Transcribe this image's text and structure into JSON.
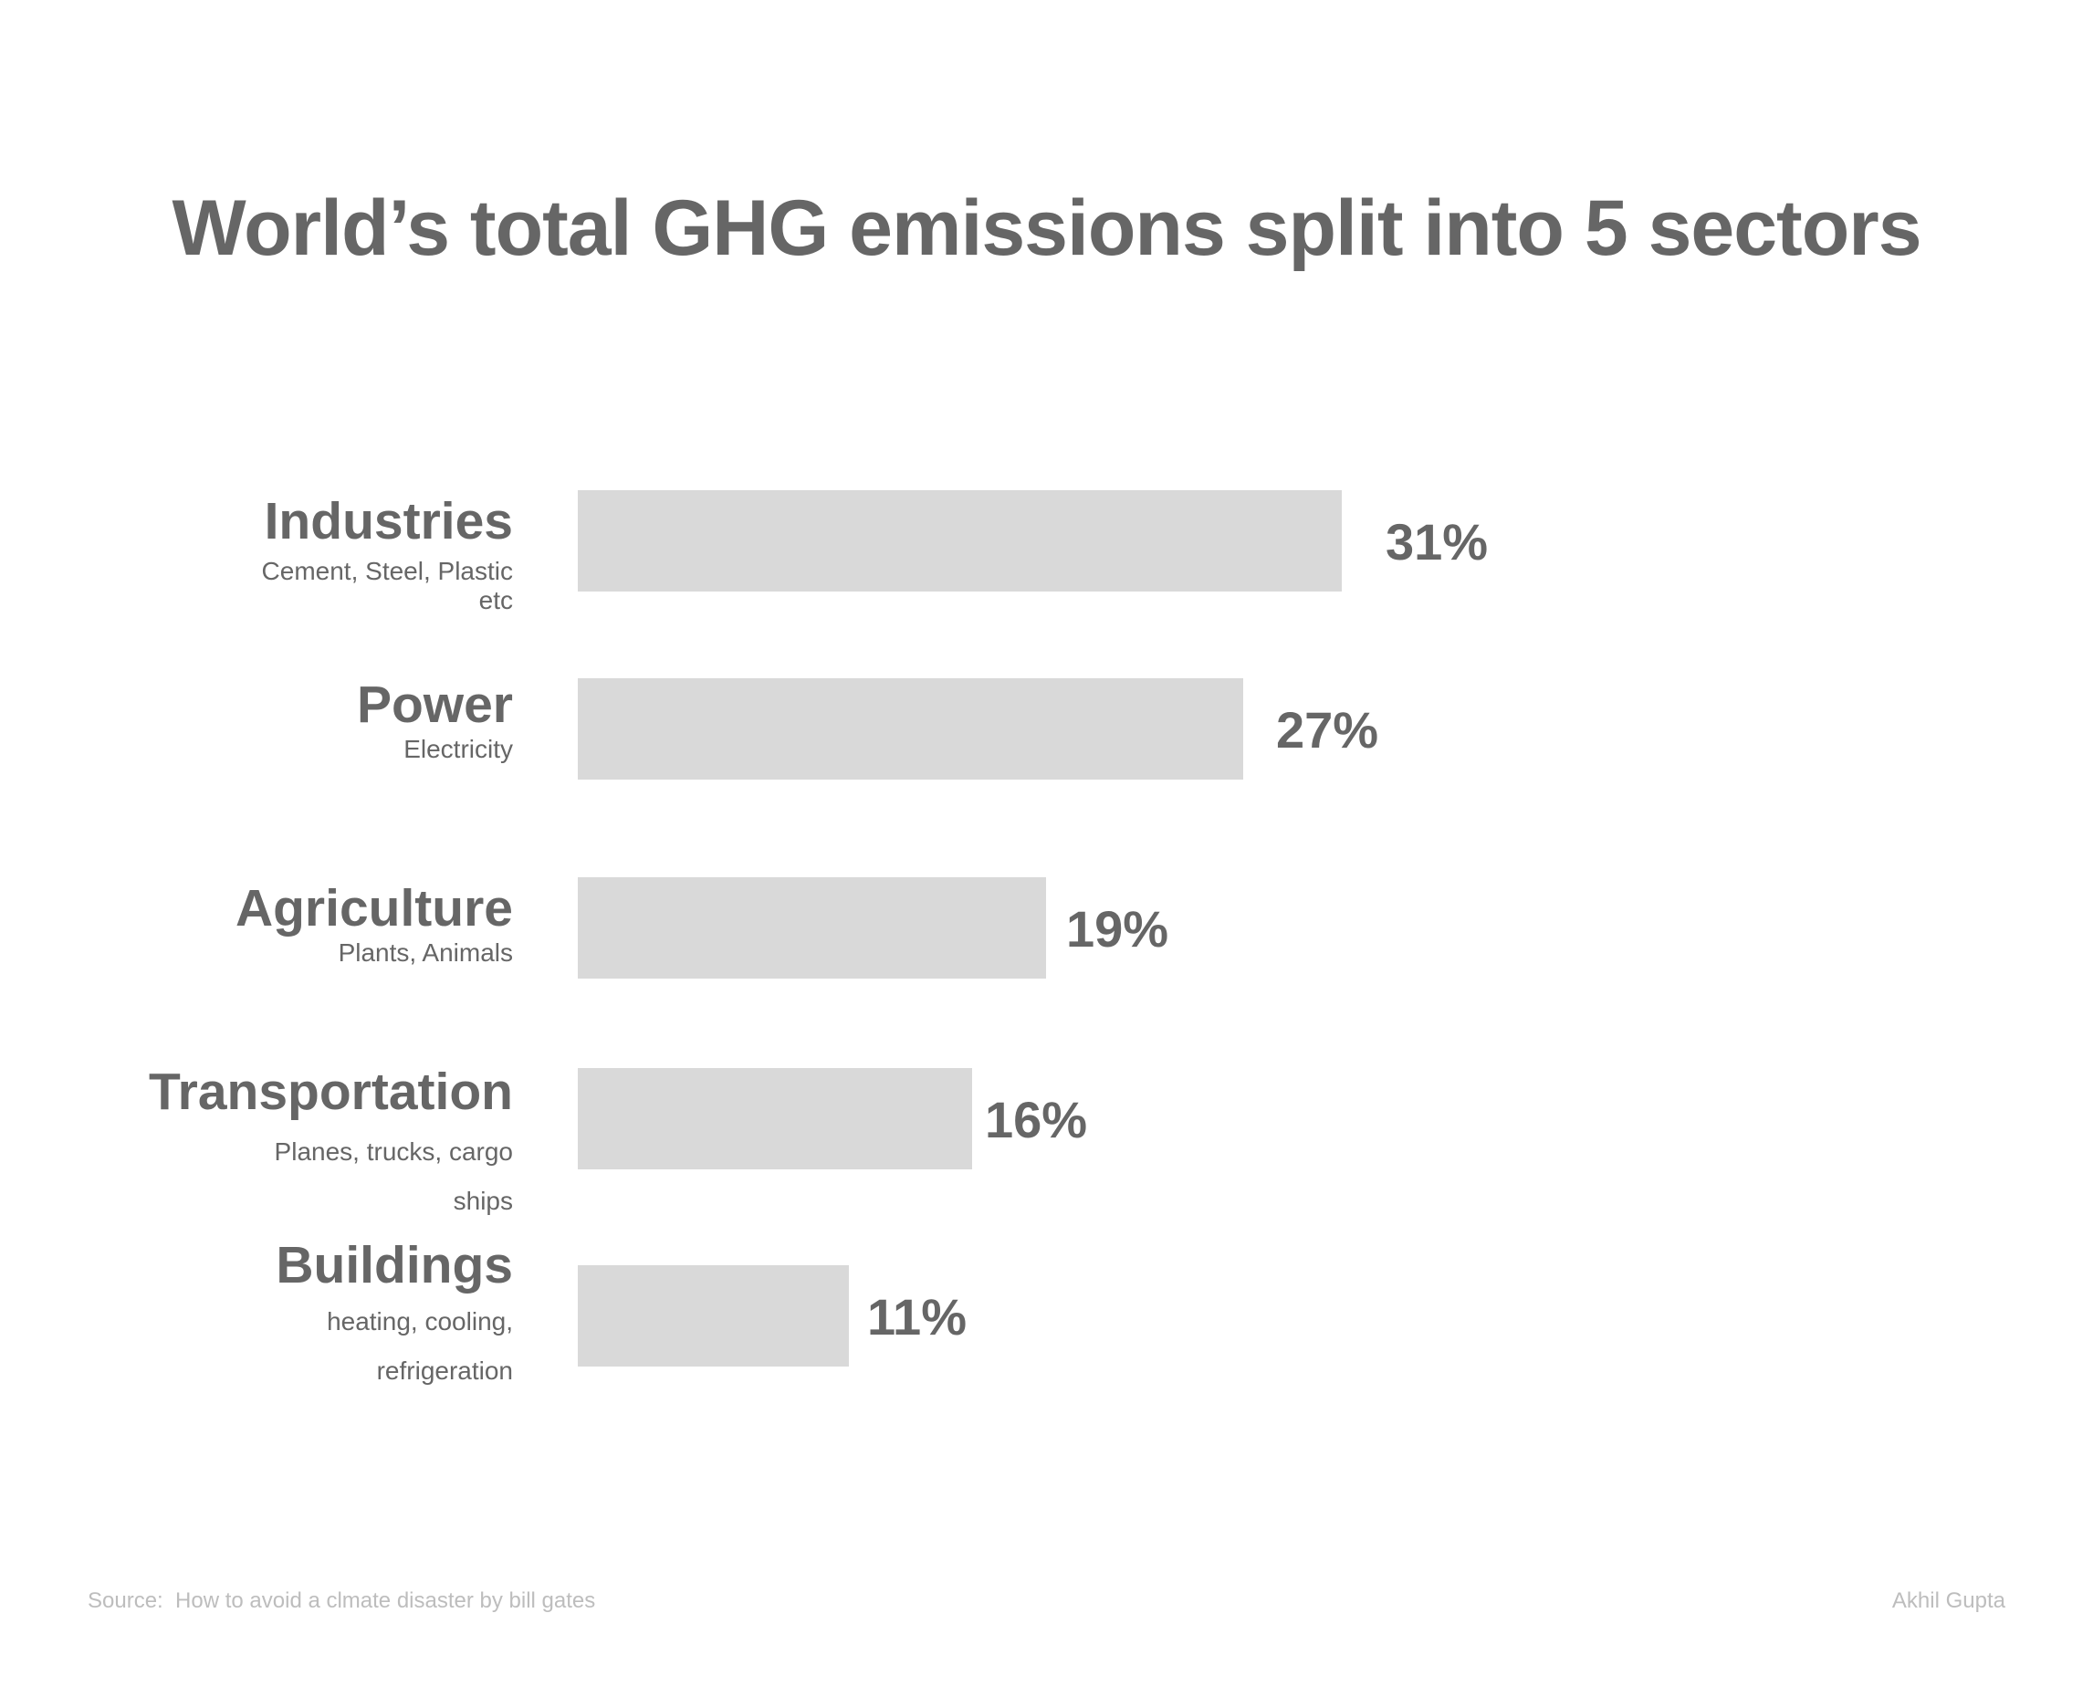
{
  "chart_data": {
    "type": "bar",
    "orientation": "horizontal",
    "title": "World’s total GHG emissions split into 5 sectors",
    "categories": [
      "Industries",
      "Power",
      "Agriculture",
      "Transportation",
      "Buildings"
    ],
    "subtitles": [
      "Cement, Steel, Plastic etc",
      "Electricity",
      "Plants, Animals",
      "Planes, trucks, cargo ships",
      "heating, cooling, refrigeration"
    ],
    "values": [
      31,
      27,
      19,
      16,
      11
    ],
    "value_labels": [
      "31%",
      "27%",
      "19%",
      "16%",
      "11%"
    ],
    "unit": "%",
    "xlabel": "",
    "ylabel": "",
    "xlim": [
      0,
      31
    ],
    "grid": false,
    "legend": "none",
    "colors": {
      "bar": "#d9d9d9",
      "text": "#666666",
      "footer": "#bdbdbd"
    }
  },
  "footer": {
    "source": "Source:  How to avoid a clmate disaster by bill gates",
    "author": "Akhil Gupta"
  }
}
